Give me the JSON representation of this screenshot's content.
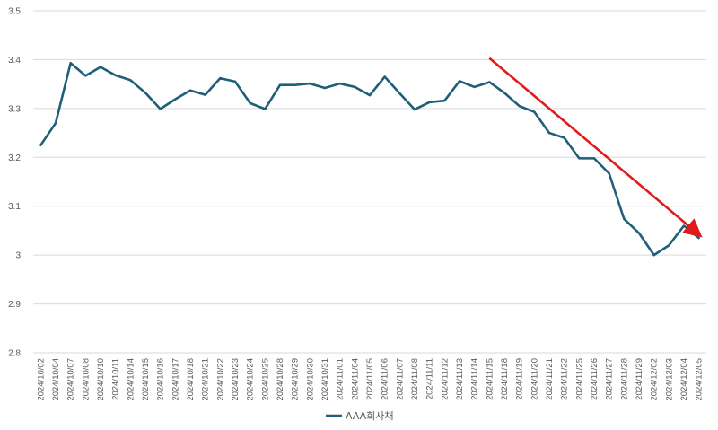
{
  "chart_data": {
    "type": "line",
    "title": "",
    "xlabel": "",
    "ylabel": "",
    "ylim": [
      2.8,
      3.5
    ],
    "yticks": [
      2.8,
      2.9,
      3,
      3.1,
      3.2,
      3.3,
      3.4,
      3.5
    ],
    "ytick_labels": [
      "2.8",
      "2.9",
      "3",
      "3.1",
      "3.2",
      "3.3",
      "3.4",
      "3.5"
    ],
    "grid": "horizontal",
    "legend_position": "bottom",
    "categories": [
      "2024/10/02",
      "2024/10/04",
      "2024/10/07",
      "2024/10/08",
      "2024/10/10",
      "2024/10/11",
      "2024/10/14",
      "2024/10/15",
      "2024/10/16",
      "2024/10/17",
      "2024/10/18",
      "2024/10/21",
      "2024/10/22",
      "2024/10/23",
      "2024/10/24",
      "2024/10/25",
      "2024/10/28",
      "2024/10/29",
      "2024/10/30",
      "2024/10/31",
      "2024/11/01",
      "2024/11/04",
      "2024/11/05",
      "2024/11/06",
      "2024/11/07",
      "2024/11/08",
      "2024/11/11",
      "2024/11/12",
      "2024/11/13",
      "2024/11/14",
      "2024/11/15",
      "2024/11/18",
      "2024/11/19",
      "2024/11/20",
      "2024/11/21",
      "2024/11/22",
      "2024/11/25",
      "2024/11/26",
      "2024/11/27",
      "2024/11/28",
      "2024/11/29",
      "2024/12/02",
      "2024/12/03",
      "2024/12/04",
      "2024/12/05"
    ],
    "series": [
      {
        "name": "AAA회사채",
        "color": "#1f5f7a",
        "values": [
          3.225,
          3.27,
          3.393,
          3.367,
          3.385,
          3.368,
          3.358,
          3.332,
          3.299,
          3.319,
          3.337,
          3.328,
          3.362,
          3.355,
          3.311,
          3.299,
          3.348,
          3.348,
          3.351,
          3.342,
          3.351,
          3.344,
          3.327,
          3.365,
          3.331,
          3.298,
          3.313,
          3.316,
          3.356,
          3.344,
          3.354,
          3.332,
          3.305,
          3.293,
          3.25,
          3.24,
          3.198,
          3.198,
          3.167,
          3.074,
          3.045,
          3.0,
          3.02,
          3.06,
          3.035
        ]
      }
    ],
    "annotation": {
      "type": "arrow",
      "color": "#e31a1c",
      "from": {
        "x": "2024/11/15",
        "y": 3.403
      },
      "to": {
        "x": "2024/12/05",
        "y": 3.042
      }
    }
  }
}
